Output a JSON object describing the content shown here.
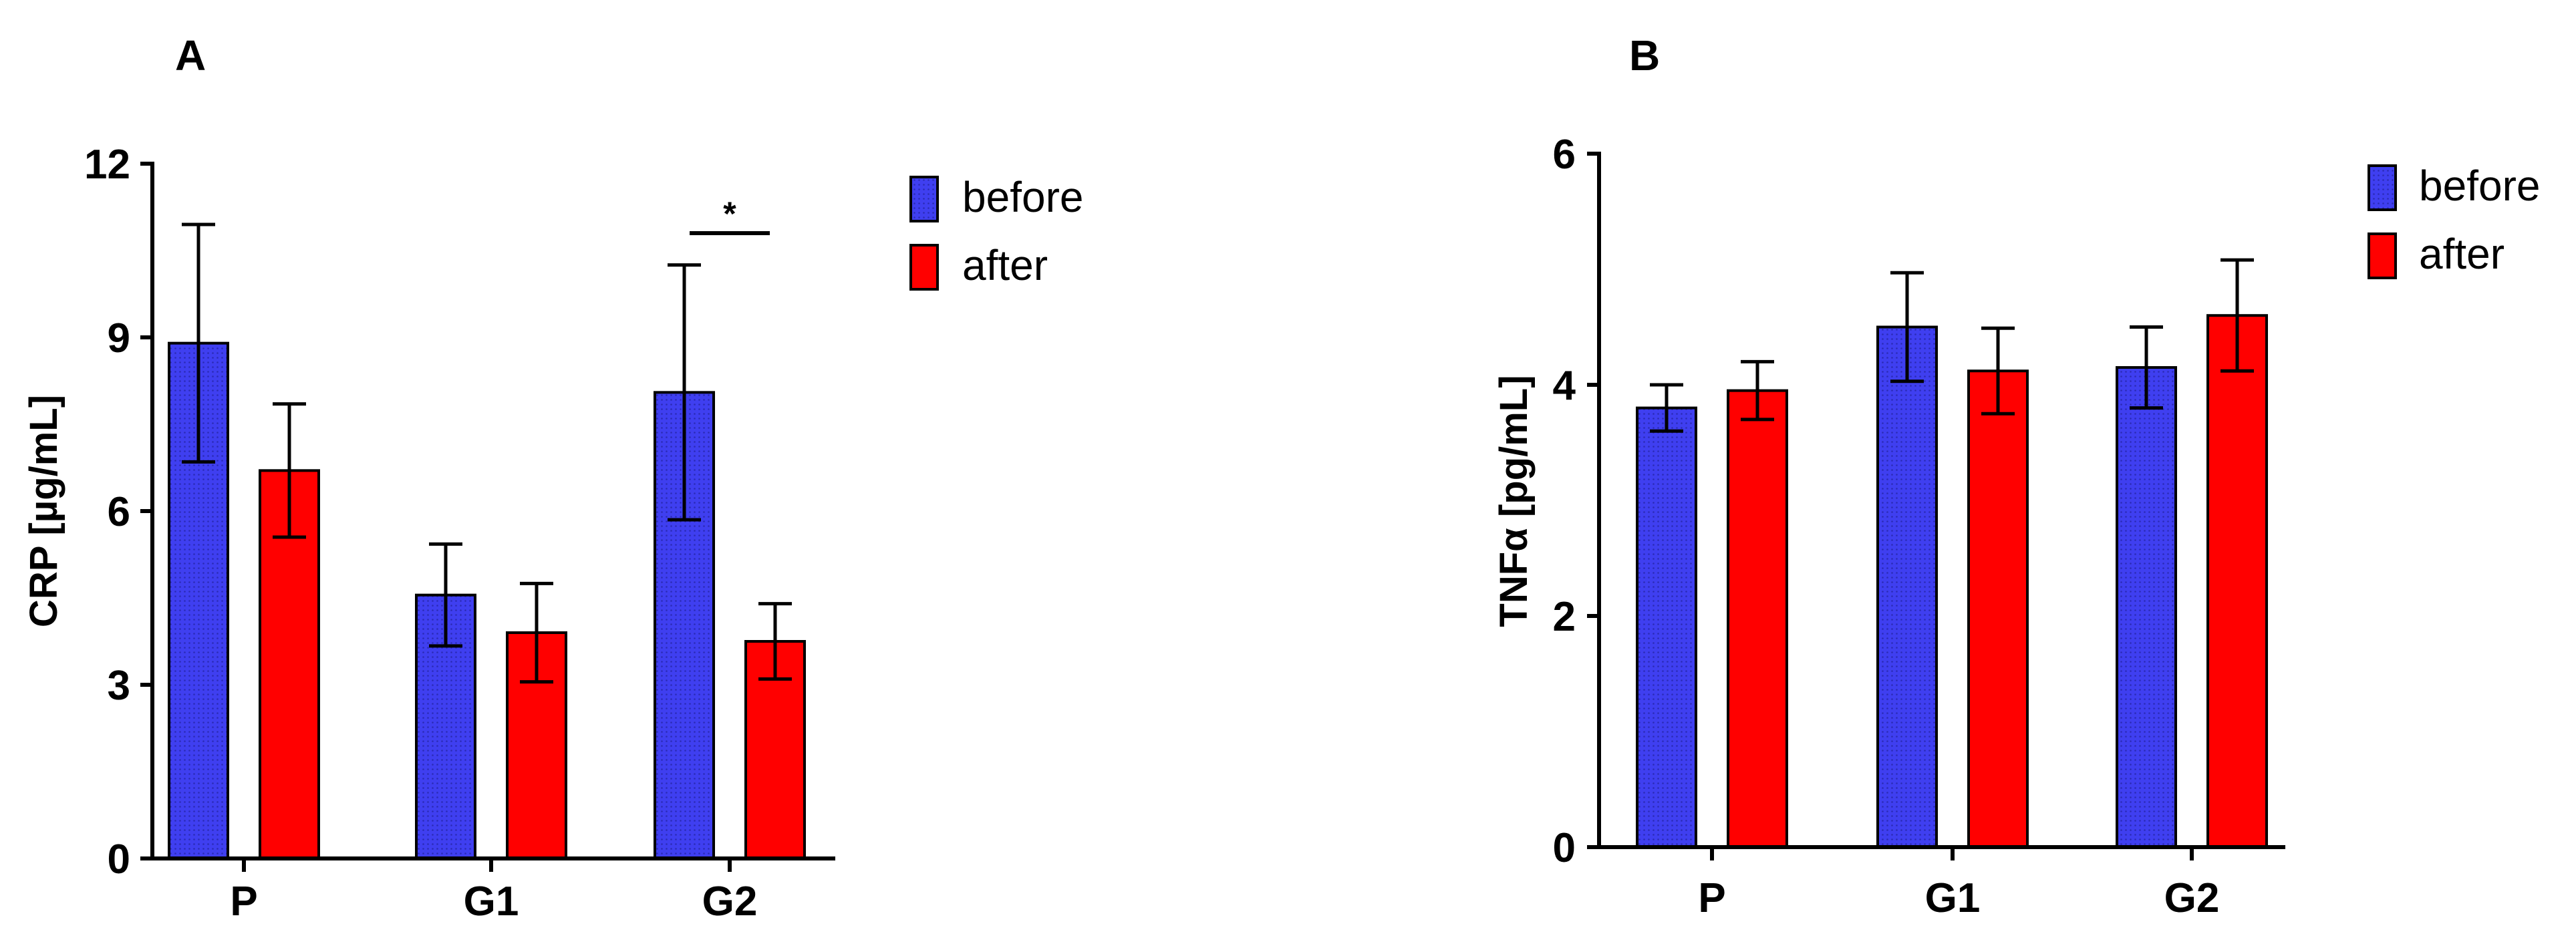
{
  "colors": {
    "before": "#3f3ff0",
    "after": "#ff0000",
    "axis": "#000000"
  },
  "chart_data": [
    {
      "type": "bar",
      "panel": "A",
      "title": "",
      "xlabel": "",
      "ylabel": "CRP [µg/mL]",
      "ylim": [
        0,
        12
      ],
      "yticks": [
        0,
        3,
        6,
        9,
        12
      ],
      "categories": [
        "P",
        "G1",
        "G2"
      ],
      "series": [
        {
          "name": "before",
          "values": [
            8.9,
            4.55,
            8.05
          ],
          "errors": [
            2.05,
            0.88,
            2.2
          ]
        },
        {
          "name": "after",
          "values": [
            6.7,
            3.9,
            3.75
          ],
          "errors": [
            1.15,
            0.85,
            0.65
          ]
        }
      ],
      "annotations": [
        {
          "text": "*",
          "category": "G2",
          "y": 10.8
        }
      ],
      "legend": [
        "before",
        "after"
      ],
      "legend_position": "top-right",
      "grid": false
    },
    {
      "type": "bar",
      "panel": "B",
      "title": "",
      "xlabel": "",
      "ylabel": "TNFα [pg/mL]",
      "ylim": [
        0,
        6
      ],
      "yticks": [
        0,
        2,
        4,
        6
      ],
      "categories": [
        "P",
        "G1",
        "G2"
      ],
      "series": [
        {
          "name": "before",
          "values": [
            3.8,
            4.5,
            4.15
          ],
          "errors": [
            0.2,
            0.47,
            0.35
          ]
        },
        {
          "name": "after",
          "values": [
            3.95,
            4.12,
            4.6
          ],
          "errors": [
            0.25,
            0.37,
            0.48
          ]
        }
      ],
      "annotations": [],
      "legend": [
        "before",
        "after"
      ],
      "legend_position": "top-right",
      "grid": false
    }
  ]
}
